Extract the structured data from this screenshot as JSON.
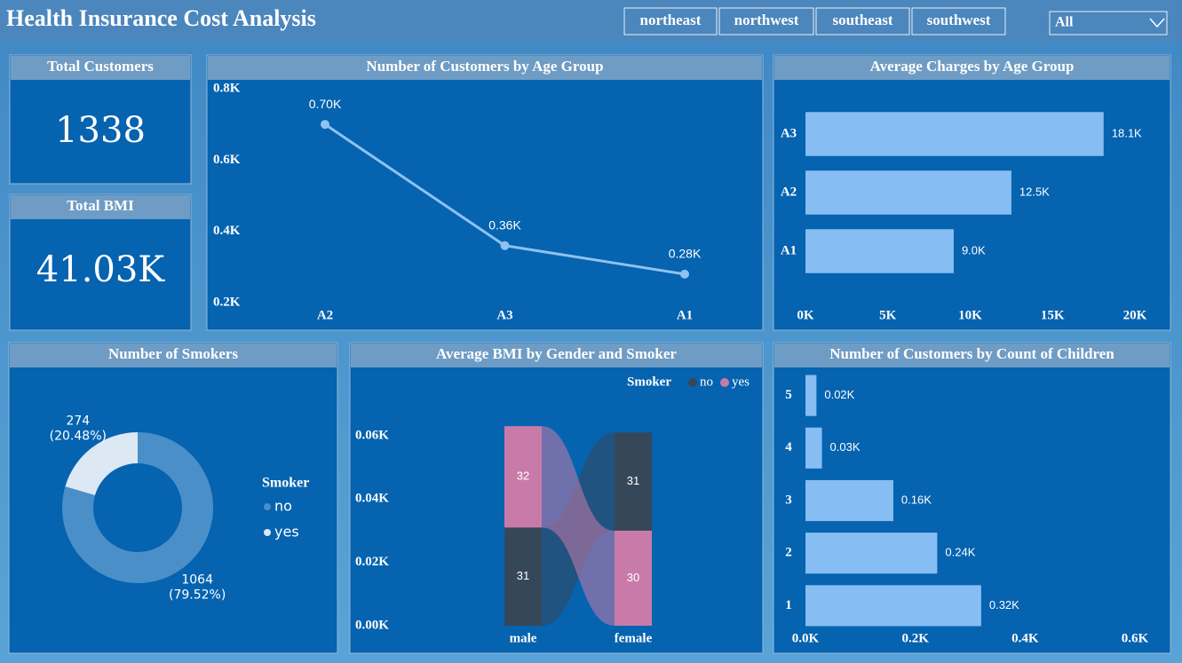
{
  "header": {
    "title": "Health Insurance Cost Analysis",
    "slicer": [
      "northeast",
      "northwest",
      "southeast",
      "southwest"
    ],
    "dropdown": "All"
  },
  "cards": [
    {
      "title": "Total Customers",
      "value": "1338"
    },
    {
      "title": "Total BMI",
      "value": "41.03K"
    }
  ],
  "chart_data": [
    {
      "type": "line",
      "title": "Number of Customers by Age Group",
      "categories": [
        "A2",
        "A3",
        "A1"
      ],
      "values": [
        700,
        360,
        280
      ],
      "value_labels": [
        "0.70K",
        "0.36K",
        "0.28K"
      ],
      "color": "#8ec2f0",
      "ylim": [
        200,
        800
      ],
      "yticks": [
        {
          "value": 200,
          "label": "0.2K"
        },
        {
          "value": 400,
          "label": "0.4K"
        },
        {
          "value": 600,
          "label": "0.6K"
        },
        {
          "value": 800,
          "label": "0.8K"
        }
      ]
    },
    {
      "type": "hbar",
      "title": "Average Charges by Age Group",
      "categories": [
        "A3",
        "A2",
        "A1"
      ],
      "values": [
        18100,
        12500,
        9000
      ],
      "value_labels": [
        "18.1K",
        "12.5K",
        "9.0K"
      ],
      "color": "#86bdf2",
      "xlim": [
        0,
        20000
      ],
      "xticks": [
        {
          "value": 0,
          "label": "0K"
        },
        {
          "value": 5000,
          "label": "5K"
        },
        {
          "value": 10000,
          "label": "10K"
        },
        {
          "value": 15000,
          "label": "15K"
        },
        {
          "value": 20000,
          "label": "20K"
        }
      ]
    },
    {
      "type": "donut",
      "title": "Number of Smokers",
      "legend_title": "Smoker",
      "categories": [
        "no",
        "yes"
      ],
      "values": [
        1064,
        274
      ],
      "percent_labels": [
        "(79.52%)",
        "(20.48%)"
      ],
      "colors": [
        "#4a8fc7",
        "#dce8f4"
      ]
    },
    {
      "type": "ribbon",
      "title": "Average BMI by Gender and Smoker",
      "legend_title": "Smoker",
      "categories": [
        "male",
        "female"
      ],
      "series": [
        {
          "name": "no",
          "color": "#37475a",
          "values": [
            31,
            31
          ]
        },
        {
          "name": "yes",
          "color": "#c87ba9",
          "values": [
            32,
            30
          ]
        }
      ],
      "ylim": [
        0,
        65
      ],
      "yticks": [
        {
          "value": 0,
          "label": "0.00K"
        },
        {
          "value": 20,
          "label": "0.02K"
        },
        {
          "value": 40,
          "label": "0.04K"
        },
        {
          "value": 60,
          "label": "0.06K"
        }
      ]
    },
    {
      "type": "hbar",
      "title": "Number of Customers by Count of Children",
      "categories": [
        "5",
        "4",
        "3",
        "2",
        "1"
      ],
      "values": [
        20,
        30,
        160,
        240,
        320
      ],
      "value_labels": [
        "0.02K",
        "0.03K",
        "0.16K",
        "0.24K",
        "0.32K"
      ],
      "color": "#86bdf2",
      "xlim": [
        0,
        600
      ],
      "xticks": [
        {
          "value": 0,
          "label": "0.0K"
        },
        {
          "value": 200,
          "label": "0.2K"
        },
        {
          "value": 400,
          "label": "0.4K"
        },
        {
          "value": 600,
          "label": "0.6K"
        }
      ]
    }
  ]
}
